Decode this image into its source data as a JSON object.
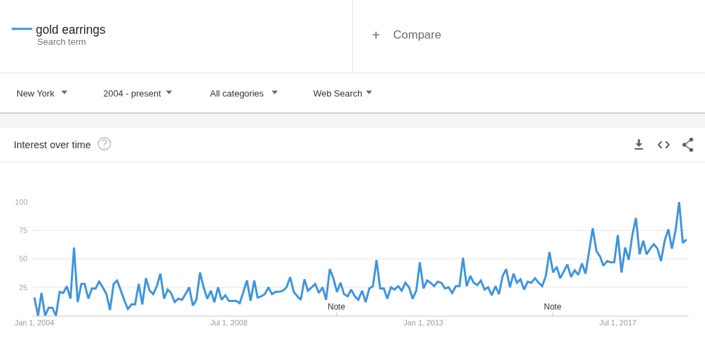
{
  "chart_data": {
    "type": "line",
    "title": "Interest over time",
    "annotations": [
      "Search term",
      "+",
      "Compare",
      "New York",
      "2004 - present",
      "All categories",
      "Web Search",
      "Note",
      "Note"
    ],
    "x": [
      "2004-01",
      "2004-02",
      "2004-03",
      "2004-04",
      "2004-05",
      "2004-06",
      "2004-07",
      "2004-08",
      "2004-09",
      "2004-10",
      "2004-11",
      "2004-12",
      "2005-01",
      "2005-02",
      "2005-03",
      "2005-04",
      "2005-05",
      "2005-06",
      "2005-07",
      "2005-08",
      "2005-09",
      "2005-10",
      "2005-11",
      "2005-12",
      "2006-01",
      "2006-02",
      "2006-03",
      "2006-04",
      "2006-05",
      "2006-06",
      "2006-07",
      "2006-08",
      "2006-09",
      "2006-10",
      "2006-11",
      "2006-12",
      "2007-01",
      "2007-02",
      "2007-03",
      "2007-04",
      "2007-05",
      "2007-06",
      "2007-07",
      "2007-08",
      "2007-09",
      "2007-10",
      "2007-11",
      "2007-12",
      "2008-01",
      "2008-02",
      "2008-03",
      "2008-04",
      "2008-05",
      "2008-06",
      "2008-07",
      "2008-08",
      "2008-09",
      "2008-10",
      "2008-11",
      "2008-12",
      "2009-01",
      "2009-02",
      "2009-03",
      "2009-04",
      "2009-05",
      "2009-06",
      "2009-07",
      "2009-08",
      "2009-09",
      "2009-10",
      "2009-11",
      "2009-12",
      "2010-01",
      "2010-02",
      "2010-03",
      "2010-04",
      "2010-05",
      "2010-06",
      "2010-07",
      "2010-08",
      "2010-09",
      "2010-10",
      "2010-11",
      "2010-12",
      "2011-01",
      "2011-02",
      "2011-03",
      "2011-04",
      "2011-05",
      "2011-06",
      "2011-07",
      "2011-08",
      "2011-09",
      "2011-10",
      "2011-11",
      "2011-12",
      "2012-01",
      "2012-02",
      "2012-03",
      "2012-04",
      "2012-05",
      "2012-06",
      "2012-07",
      "2012-08",
      "2012-09",
      "2012-10",
      "2012-11",
      "2012-12",
      "2013-01",
      "2013-02",
      "2013-03",
      "2013-04",
      "2013-05",
      "2013-06",
      "2013-07",
      "2013-08",
      "2013-09",
      "2013-10",
      "2013-11",
      "2013-12",
      "2014-01",
      "2014-02",
      "2014-03",
      "2014-04",
      "2014-05",
      "2014-06",
      "2014-07",
      "2014-08",
      "2014-09",
      "2014-10",
      "2014-11",
      "2014-12",
      "2015-01",
      "2015-02",
      "2015-03",
      "2015-04",
      "2015-05",
      "2015-06",
      "2015-07",
      "2015-08",
      "2015-09",
      "2015-10",
      "2015-11",
      "2015-12",
      "2016-01",
      "2016-02",
      "2016-03",
      "2016-04",
      "2016-05",
      "2016-06",
      "2016-07",
      "2016-08",
      "2016-09",
      "2016-10",
      "2016-11",
      "2016-12",
      "2017-01",
      "2017-02",
      "2017-03",
      "2017-04",
      "2017-05",
      "2017-06",
      "2017-07",
      "2017-08",
      "2017-09",
      "2017-10",
      "2017-11",
      "2017-12",
      "2018-01",
      "2018-02",
      "2018-03",
      "2018-04",
      "2018-05",
      "2018-06",
      "2018-07",
      "2018-08",
      "2018-09",
      "2018-10",
      "2018-11",
      "2018-12",
      "2019-01",
      "2019-02"
    ],
    "series": [
      {
        "name": "gold earrings",
        "color": "#3d94e0",
        "values": [
          16,
          0,
          20,
          0,
          7,
          7,
          0,
          21,
          20,
          26,
          15,
          60,
          12,
          28,
          28,
          15,
          24,
          24,
          30,
          25,
          19,
          5,
          28,
          31,
          22,
          13,
          6,
          10,
          10,
          28,
          10,
          33,
          22,
          19,
          26,
          37,
          15,
          23,
          20,
          12,
          15,
          14,
          19,
          25,
          9,
          14,
          38,
          25,
          15,
          22,
          12,
          25,
          14,
          18,
          13,
          13,
          13,
          11,
          21,
          31,
          13,
          31,
          16,
          17,
          19,
          25,
          19,
          21,
          21,
          22,
          25,
          34,
          21,
          17,
          14,
          32,
          22,
          25,
          28,
          20,
          25,
          14,
          41,
          33,
          21,
          29,
          19,
          17,
          23,
          17,
          14,
          22,
          12,
          24,
          26,
          49,
          24,
          24,
          15,
          25,
          23,
          26,
          22,
          29,
          25,
          15,
          22,
          47,
          24,
          31,
          29,
          26,
          30,
          29,
          24,
          25,
          20,
          26,
          26,
          51,
          26,
          35,
          29,
          27,
          31,
          23,
          25,
          18,
          26,
          19,
          35,
          41,
          25,
          37,
          29,
          32,
          23,
          30,
          29,
          33,
          29,
          26,
          35,
          56,
          38,
          43,
          33,
          39,
          45,
          34,
          40,
          36,
          46,
          37,
          57,
          77,
          57,
          52,
          44,
          48,
          47,
          47,
          71,
          38,
          60,
          49,
          71,
          86,
          54,
          66,
          54,
          59,
          63,
          59,
          48,
          66,
          76,
          59,
          75,
          100,
          64,
          67
        ]
      }
    ],
    "xlim": [
      "2003-12-15",
      "2019-02-18"
    ],
    "xticks": [
      {
        "value": "2004-01-01",
        "label": "Jan 1, 2004"
      },
      {
        "value": "2008-07-01",
        "label": "Jul 1, 2008"
      },
      {
        "value": "2013-01-01",
        "label": "Jan 1, 2013"
      },
      {
        "value": "2017-07-01",
        "label": "Jul 1, 2017"
      }
    ],
    "ylim": [
      0,
      100
    ],
    "yticks": [
      25,
      50,
      75,
      100
    ],
    "grid": "y",
    "legend": "top left",
    "line_style": "solid"
  }
}
